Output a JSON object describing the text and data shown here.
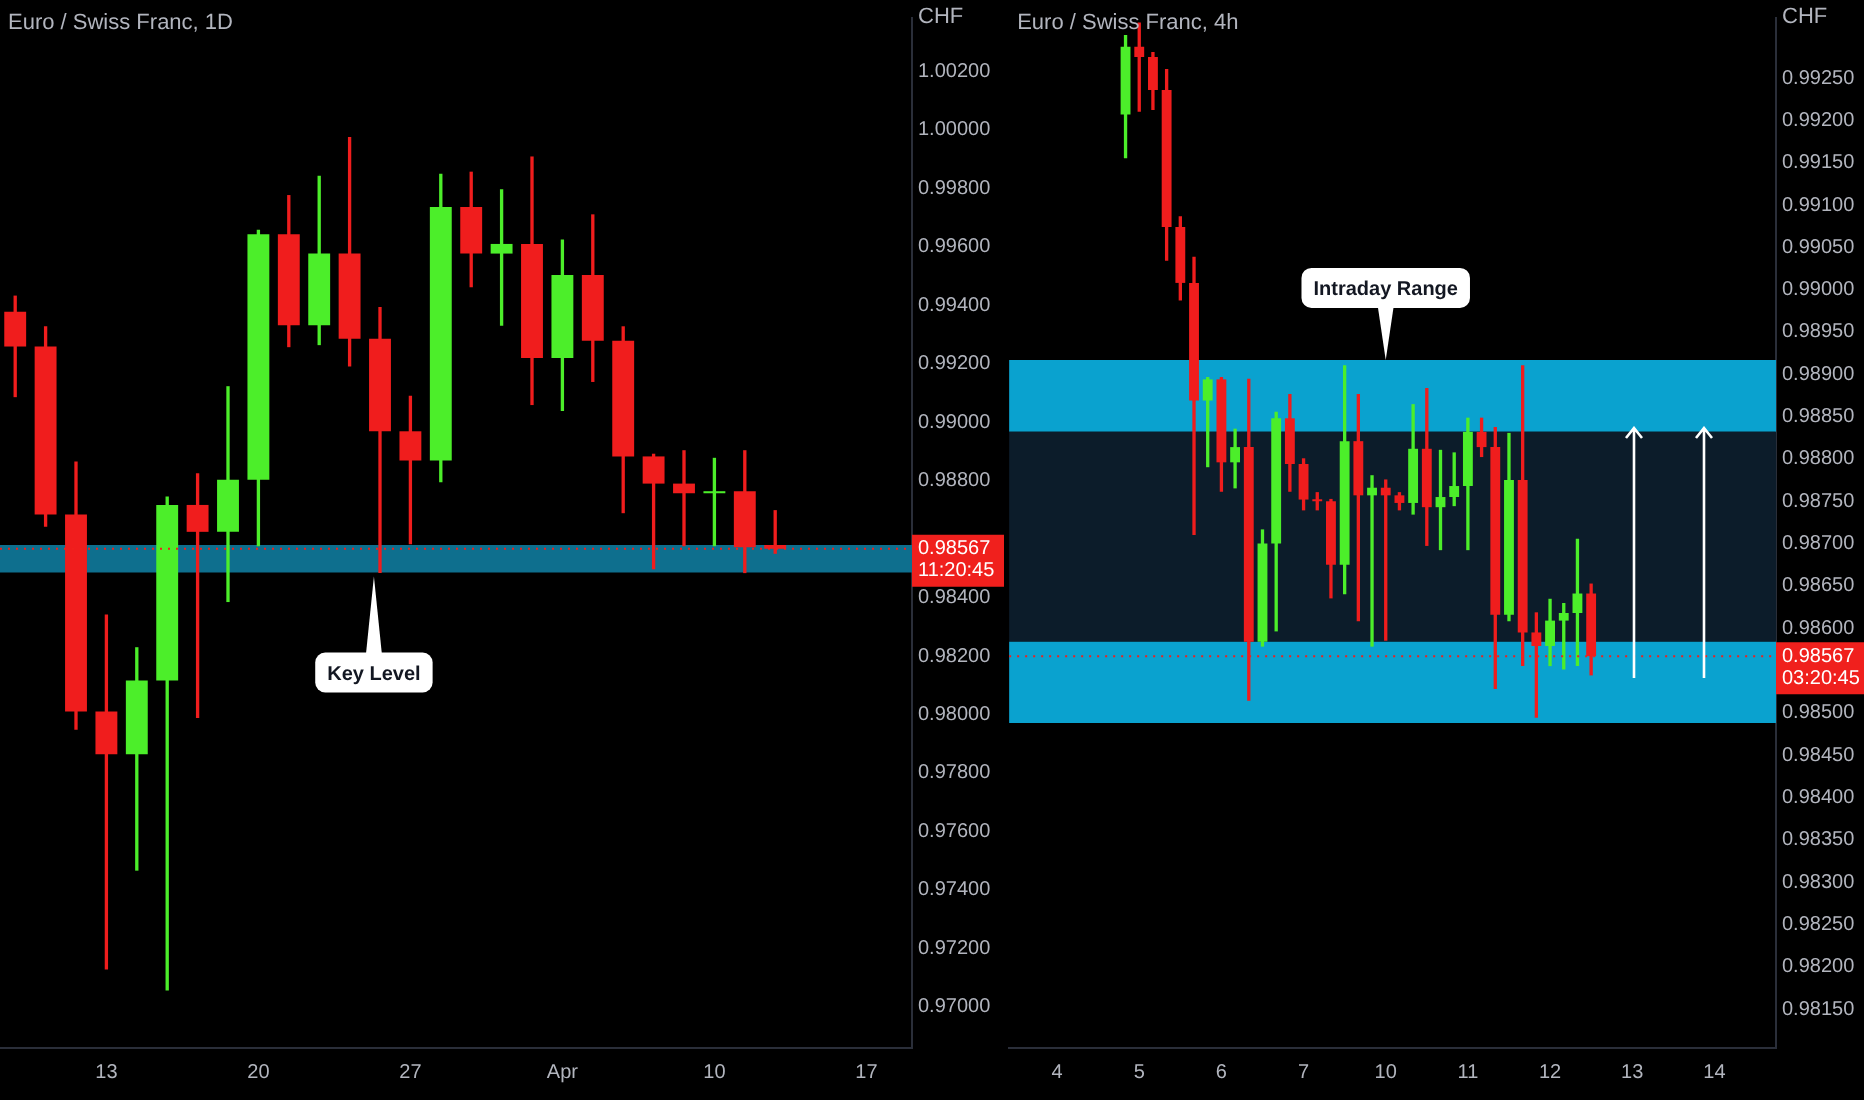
{
  "chart_data": [
    {
      "type": "candlestick",
      "title": "Euro / Swiss Franc, 1D",
      "ylabel": "CHF",
      "grid": false,
      "legend": false,
      "categories": [
        null,
        null,
        null,
        "13",
        null,
        null,
        null,
        null,
        "20",
        null,
        null,
        null,
        null,
        "27",
        null,
        null,
        null,
        null,
        "Apr",
        null,
        null,
        null,
        null,
        "10",
        null,
        null,
        null,
        null,
        "17",
        null
      ],
      "ohlc": [
        [
          0.99378,
          0.99431,
          0.99088,
          0.99259
        ],
        [
          0.99259,
          0.99326,
          0.98645,
          0.98684
        ],
        [
          0.98684,
          0.98863,
          0.9795,
          0.9801
        ],
        [
          0.9801,
          0.9834,
          0.9713,
          0.97864
        ],
        [
          0.97864,
          0.98228,
          0.97468,
          0.98116
        ],
        [
          0.98116,
          0.98744,
          0.97058,
          0.98717
        ],
        [
          0.98717,
          0.98823,
          0.9799,
          0.98625
        ],
        [
          0.98625,
          0.99121,
          0.98387,
          0.98803
        ],
        [
          0.98803,
          0.99656,
          0.98578,
          0.99643
        ],
        [
          0.99643,
          0.99775,
          0.99259,
          0.99332
        ],
        [
          0.99332,
          0.99841,
          0.99266,
          0.99577
        ],
        [
          0.99577,
          0.99974,
          0.99193,
          0.99286
        ],
        [
          0.99286,
          0.99392,
          0.98486,
          0.98969
        ],
        [
          0.98969,
          0.99088,
          0.98585,
          0.98869
        ],
        [
          0.98869,
          0.99848,
          0.98797,
          0.99736
        ],
        [
          0.99736,
          0.99855,
          0.99464,
          0.99577
        ],
        [
          0.99577,
          0.99795,
          0.99332,
          0.9961
        ],
        [
          0.9961,
          0.99907,
          0.99061,
          0.9922
        ],
        [
          0.9922,
          0.99623,
          0.99041,
          0.99504
        ],
        [
          0.99504,
          0.99709,
          0.9914,
          0.99279
        ],
        [
          0.99279,
          0.99326,
          0.98691,
          0.98883
        ],
        [
          0.98883,
          0.9889,
          0.98499,
          0.9879
        ],
        [
          0.9879,
          0.98902,
          0.98578,
          0.98757
        ],
        [
          0.98757,
          0.98876,
          0.98578,
          0.98764
        ],
        [
          0.98764,
          0.98902,
          0.98486,
          0.98572
        ],
        [
          0.9858,
          0.98697,
          0.98552,
          0.98567
        ],
        null,
        null,
        null,
        null
      ],
      "ylim": [
        0.96859,
        1.00383
      ],
      "yticks": [
        {
          "value": 0.97,
          "label": "0.97000"
        },
        {
          "value": 0.972,
          "label": "0.97200"
        },
        {
          "value": 0.974,
          "label": "0.97400"
        },
        {
          "value": 0.976,
          "label": "0.97600"
        },
        {
          "value": 0.978,
          "label": "0.97800"
        },
        {
          "value": 0.98,
          "label": "0.98000"
        },
        {
          "value": 0.982,
          "label": "0.98200"
        },
        {
          "value": 0.984,
          "label": "0.98400"
        },
        {
          "value": 0.988,
          "label": "0.98800"
        },
        {
          "value": 0.99,
          "label": "0.99000"
        },
        {
          "value": 0.992,
          "label": "0.99200"
        },
        {
          "value": 0.994,
          "label": "0.99400"
        },
        {
          "value": 0.996,
          "label": "0.99600"
        },
        {
          "value": 0.998,
          "label": "0.99800"
        },
        {
          "value": 1.0,
          "label": "1.00000"
        },
        {
          "value": 1.002,
          "label": "1.00200"
        }
      ],
      "bands": [
        {
          "axis": "y",
          "from": 0.98486,
          "to": 0.9858,
          "color": "#0e6f8e"
        }
      ],
      "ref_lines": [
        {
          "axis": "y",
          "value": 0.98567,
          "label": "0.98567\n11:20:45",
          "color": "#f0201d",
          "line_style": "dotted"
        }
      ],
      "annotations": [
        {
          "text": "Key Level",
          "y": 0.98486
        }
      ]
    },
    {
      "type": "candlestick",
      "title": "Euro / Swiss Franc, 4h",
      "ylabel": "CHF",
      "grid": false,
      "legend": false,
      "categories": [
        null,
        null,
        null,
        "4",
        null,
        null,
        null,
        null,
        null,
        "5",
        null,
        null,
        null,
        null,
        null,
        "6",
        null,
        null,
        null,
        null,
        null,
        "7",
        null,
        null,
        null,
        null,
        null,
        "10",
        null,
        null,
        null,
        null,
        null,
        "11",
        null,
        null,
        null,
        null,
        null,
        "12",
        null,
        null,
        null,
        null,
        null,
        "13",
        null,
        null,
        null,
        null,
        null,
        "14",
        null,
        null,
        null,
        null
      ],
      "ohlc": [
        null,
        null,
        null,
        null,
        null,
        null,
        null,
        null,
        [
          0.99207,
          0.993,
          0.99156,
          0.99287
        ],
        [
          0.99287,
          0.99315,
          0.99211,
          0.99275
        ],
        [
          0.99275,
          0.9928,
          0.99213,
          0.99236
        ],
        [
          0.99236,
          0.9926,
          0.99035,
          0.99074
        ],
        [
          0.99074,
          0.99086,
          0.98988,
          0.99008
        ],
        [
          0.99008,
          0.99038,
          0.98711,
          0.98869
        ],
        [
          0.98869,
          0.98896,
          0.98791,
          0.98894
        ],
        [
          0.98894,
          0.98896,
          0.98762,
          0.98796
        ],
        [
          0.98796,
          0.98835,
          0.98766,
          0.98814
        ],
        [
          0.98814,
          0.98894,
          0.98515,
          0.98584
        ],
        [
          0.98584,
          0.98716,
          0.98579,
          0.987
        ],
        [
          0.987,
          0.98855,
          0.98597,
          0.98848
        ],
        [
          0.98848,
          0.98876,
          0.98762,
          0.98794
        ],
        [
          0.98794,
          0.988,
          0.9874,
          0.98752
        ],
        [
          0.98752,
          0.9876,
          0.9874,
          0.9875
        ],
        [
          0.9875,
          0.98752,
          0.98636,
          0.98675
        ],
        [
          0.98675,
          0.9891,
          0.98641,
          0.98821
        ],
        [
          0.98821,
          0.98876,
          0.98609,
          0.98757
        ],
        [
          0.98757,
          0.9878,
          0.98579,
          0.98766
        ],
        [
          0.98766,
          0.98775,
          0.98586,
          0.98757
        ],
        [
          0.98757,
          0.9876,
          0.9874,
          0.98748
        ],
        [
          0.98748,
          0.98864,
          0.98735,
          0.98812
        ],
        [
          0.98812,
          0.98883,
          0.98698,
          0.98743
        ],
        [
          0.98743,
          0.9881,
          0.98693,
          0.98755
        ],
        [
          0.98755,
          0.98807,
          0.98745,
          0.98768
        ],
        [
          0.98768,
          0.98848,
          0.98693,
          0.98832
        ],
        [
          0.98832,
          0.98848,
          0.98803,
          0.98814
        ],
        [
          0.98814,
          0.98837,
          0.98529,
          0.98616
        ],
        [
          0.98616,
          0.9883,
          0.98609,
          0.98775
        ],
        [
          0.98775,
          0.9891,
          0.98556,
          0.98595
        ],
        [
          0.98595,
          0.98618,
          0.98495,
          0.98579
        ],
        [
          0.98579,
          0.98634,
          0.98556,
          0.98609
        ],
        [
          0.98609,
          0.98629,
          0.98552,
          0.98618
        ],
        [
          0.98618,
          0.98705,
          0.98556,
          0.98641
        ],
        [
          0.98641,
          0.98652,
          0.98545,
          0.98567
        ],
        null,
        null,
        null,
        null,
        null,
        null,
        null,
        null,
        null,
        null,
        null,
        null,
        null
      ],
      "ylim": [
        0.98104,
        0.99321
      ],
      "yticks": [
        {
          "value": 0.9815,
          "label": "0.98150"
        },
        {
          "value": 0.982,
          "label": "0.98200"
        },
        {
          "value": 0.9825,
          "label": "0.98250"
        },
        {
          "value": 0.983,
          "label": "0.98300"
        },
        {
          "value": 0.9835,
          "label": "0.98350"
        },
        {
          "value": 0.984,
          "label": "0.98400"
        },
        {
          "value": 0.9845,
          "label": "0.98450"
        },
        {
          "value": 0.985,
          "label": "0.98500"
        },
        {
          "value": 0.986,
          "label": "0.98600"
        },
        {
          "value": 0.9865,
          "label": "0.98650"
        },
        {
          "value": 0.987,
          "label": "0.98700"
        },
        {
          "value": 0.9875,
          "label": "0.98750"
        },
        {
          "value": 0.988,
          "label": "0.98800"
        },
        {
          "value": 0.9885,
          "label": "0.98850"
        },
        {
          "value": 0.989,
          "label": "0.98900"
        },
        {
          "value": 0.9895,
          "label": "0.98950"
        },
        {
          "value": 0.99,
          "label": "0.99000"
        },
        {
          "value": 0.9905,
          "label": "0.99050"
        },
        {
          "value": 0.991,
          "label": "0.99100"
        },
        {
          "value": 0.9915,
          "label": "0.99150"
        },
        {
          "value": 0.992,
          "label": "0.99200"
        },
        {
          "value": 0.9925,
          "label": "0.99250"
        }
      ],
      "bands": [
        {
          "axis": "y",
          "from": 0.98832,
          "to": 0.98917,
          "color": "#0aa2cf"
        },
        {
          "axis": "y",
          "from": 0.98584,
          "to": 0.98832,
          "color": "#0c1c2a"
        },
        {
          "axis": "y",
          "from": 0.98488,
          "to": 0.98584,
          "color": "#0aa2cf"
        }
      ],
      "ref_lines": [
        {
          "axis": "y",
          "value": 0.98567,
          "label": "0.98567\n03:20:45",
          "color": "#f0201d",
          "line_style": "dotted"
        }
      ],
      "annotations": [
        {
          "text": "Intraday Range",
          "x": "10",
          "y": 0.98917
        }
      ]
    }
  ]
}
